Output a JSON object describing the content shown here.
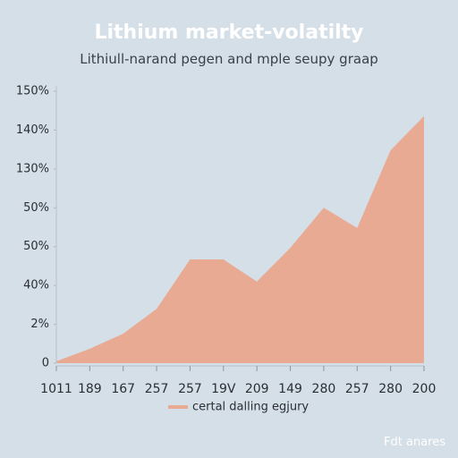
{
  "chart_data": {
    "type": "area",
    "title": "Lithium market-volatilty",
    "subtitle": "Lithiull-narand pegen and mple seupy graap",
    "categories": [
      "1011",
      "189",
      "167",
      "257",
      "257",
      "19V",
      "209",
      "149",
      "280",
      "257",
      "280",
      "200"
    ],
    "series": [
      {
        "name": "certal dalling egjury",
        "color": "#e8aa92",
        "values": [
          0.05,
          0.37,
          0.76,
          1.4,
          2.67,
          2.67,
          2.1,
          2.97,
          4.0,
          3.48,
          5.48,
          6.36
        ]
      }
    ],
    "ylim": [
      0,
      7
    ],
    "yticks": [
      0,
      {
        "value": 1,
        "label": "2%"
      },
      {
        "value": 2,
        "label": "40%"
      },
      {
        "value": 3,
        "label": "50%"
      },
      {
        "value": 4,
        "label": "50%"
      },
      {
        "value": 5,
        "label": "130%"
      },
      {
        "value": 6,
        "label": "140%"
      },
      {
        "value": 7,
        "label": "150%"
      }
    ],
    "grid": false,
    "legend": "bottom",
    "footer": "Fdt anares"
  }
}
